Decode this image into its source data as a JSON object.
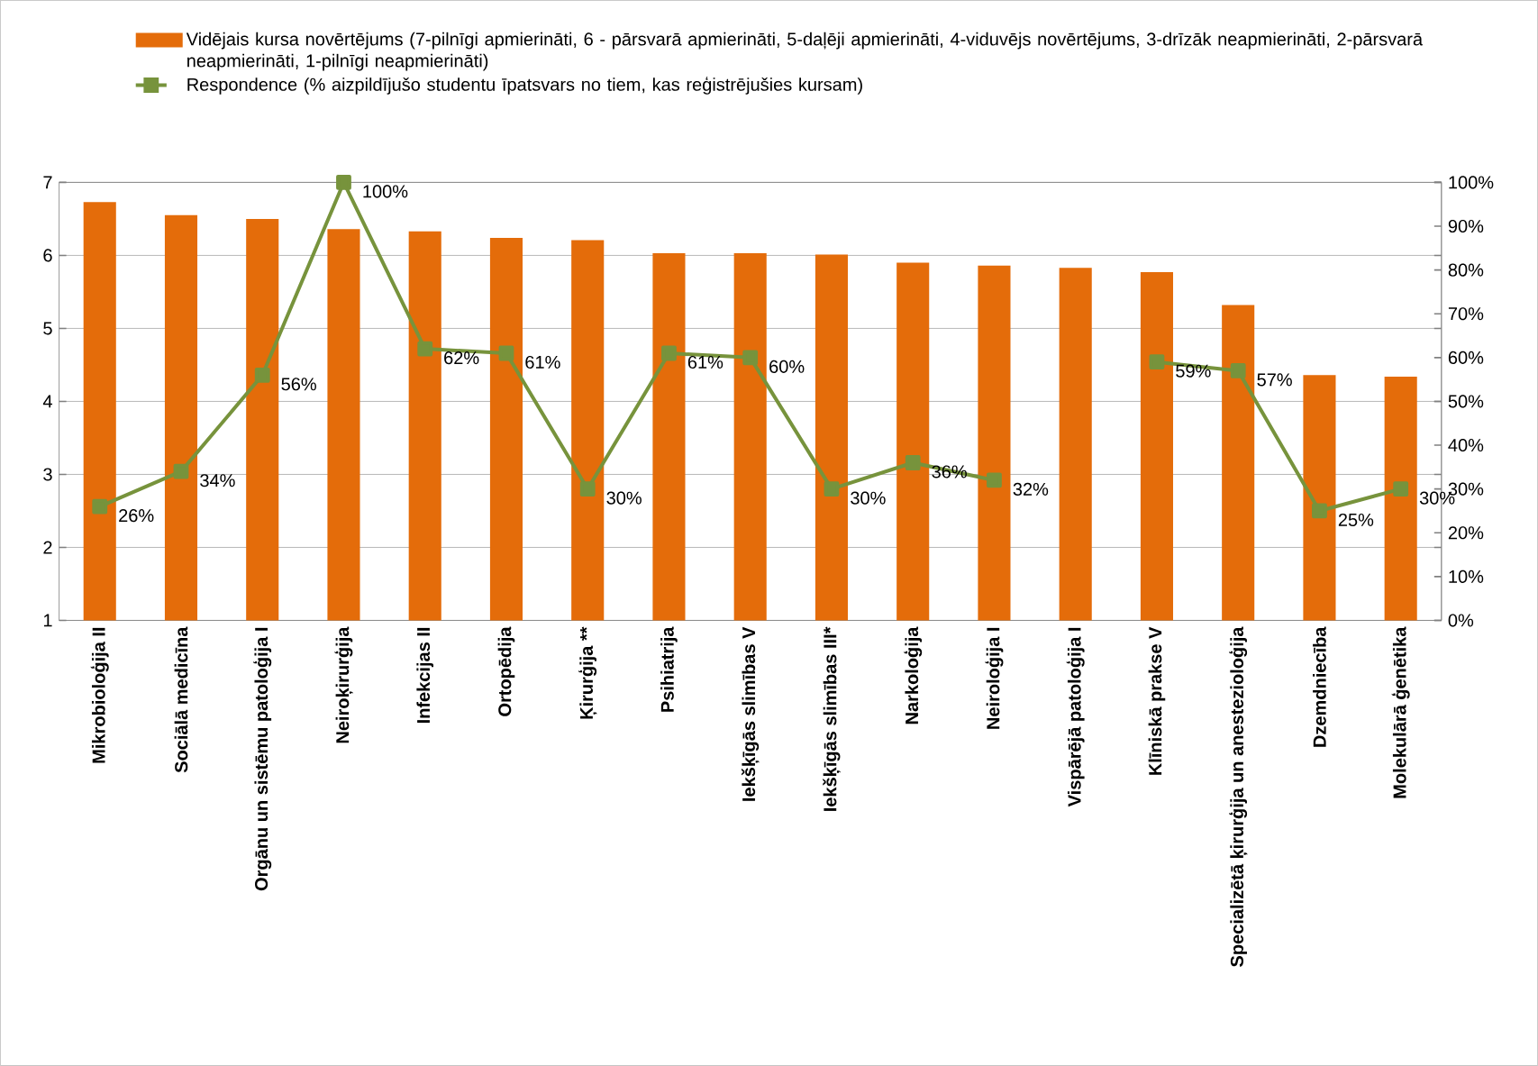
{
  "chart_data": {
    "type": "bar",
    "categories": [
      "Mikrobioloģija II",
      "Sociālā medicīna",
      "Orgānu un sistēmu patoloģija I",
      "Neiroķirurģija",
      "Infekcijas II",
      "Ortopēdija",
      "Ķirurģija **",
      "Psihiatrija",
      "Iekšķīgās slimības V",
      "Iekšķīgās slimības III*",
      "Narkoloģija",
      "Neiroloģija I",
      "Vispārējā patoloģija I",
      "Klīniskā prakse V",
      "Specializētā ķirurģija un anestezioloģija",
      "Dzemdniecība",
      "Molekulārā ģenētika"
    ],
    "series": [
      {
        "name": "Vidējais kursa novērtējums (7-pilnīgi apmierināti, 6 - pārsvarā apmierināti, 5-daļēji apmierināti, 4-viduvējs novērtējums, 3-drīzāk neapmierināti, 2-pārsvarā neapmierināti, 1-pilnīgi neapmierināti)",
        "color": "#e46c0a",
        "values": [
          6.73,
          6.55,
          6.5,
          6.36,
          6.33,
          6.24,
          6.21,
          6.03,
          6.03,
          6.01,
          5.9,
          5.86,
          5.83,
          5.77,
          5.32,
          4.36,
          4.34
        ]
      },
      {
        "name": "Respondence (% aizpildījušo studentu īpatsvars no tiem, kas reģistrējušies kursam)",
        "type": "line",
        "axis": "y2",
        "color": "#77933c",
        "marker": "square",
        "line_style": "solid",
        "values": [
          26,
          34,
          56,
          100,
          62,
          61,
          30,
          61,
          60,
          30,
          36,
          32,
          null,
          59,
          57,
          25,
          30
        ],
        "value_labels": [
          "26%",
          "34%",
          "56%",
          "100%",
          "62%",
          "61%",
          "30%",
          "61%",
          "60%",
          "30%",
          "36%",
          "32%",
          null,
          "59%",
          "57%",
          "25%",
          "30%"
        ]
      }
    ],
    "ylim": [
      1,
      7
    ],
    "yticks": [
      1,
      2,
      3,
      4,
      5,
      6,
      7
    ],
    "y2lim": [
      0,
      100
    ],
    "y2ticks": [
      {
        "value": 0,
        "label": "0%"
      },
      {
        "value": 10,
        "label": "10%"
      },
      {
        "value": 20,
        "label": "20%"
      },
      {
        "value": 30,
        "label": "30%"
      },
      {
        "value": 40,
        "label": "40%"
      },
      {
        "value": 50,
        "label": "50%"
      },
      {
        "value": 60,
        "label": "60%"
      },
      {
        "value": 70,
        "label": "70%"
      },
      {
        "value": 80,
        "label": "80%"
      },
      {
        "value": 90,
        "label": "90%"
      },
      {
        "value": 100,
        "label": "100%"
      }
    ],
    "grid": "y",
    "legend": "top"
  }
}
